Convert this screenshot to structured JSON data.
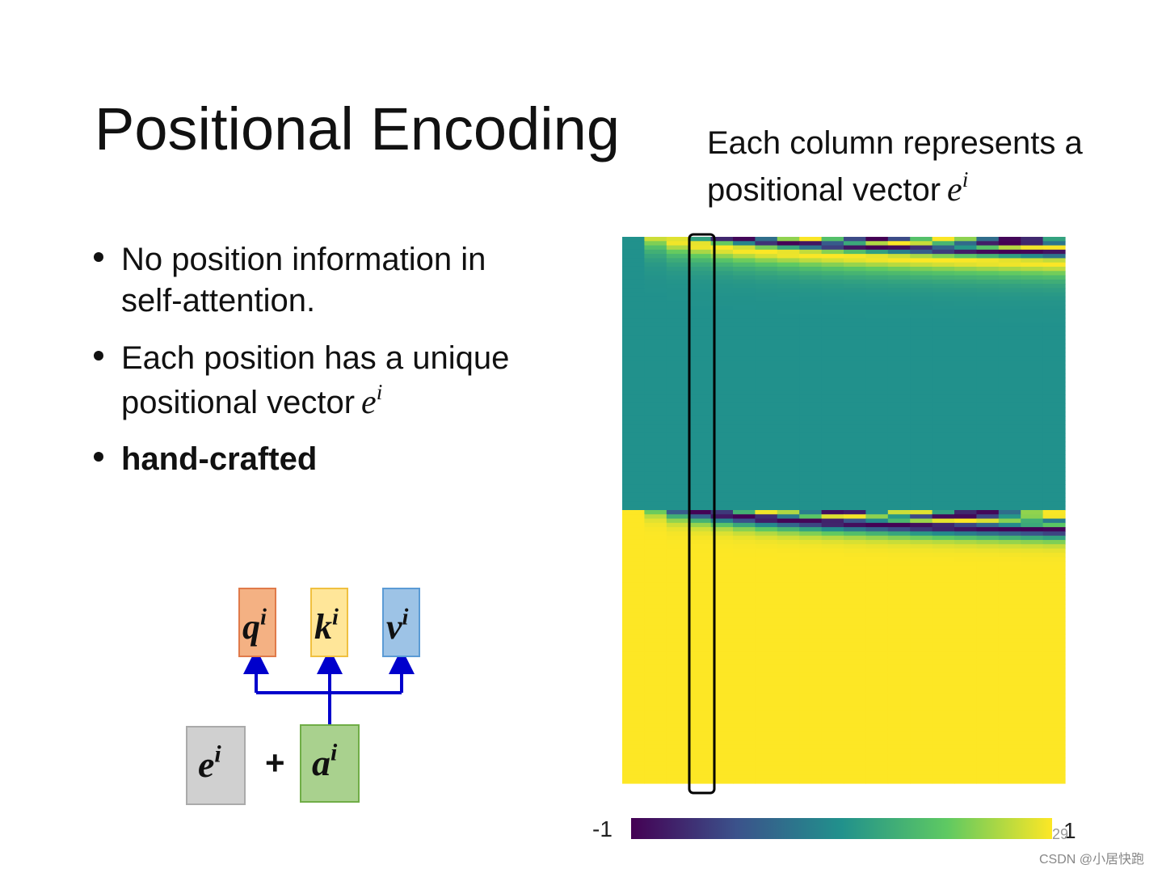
{
  "title": "Positional Encoding",
  "caption": {
    "lines": [
      "Each column represents a",
      "positional vector"
    ],
    "math": {
      "base": "e",
      "sup": "i"
    }
  },
  "bullets": [
    {
      "lines": [
        "No position information in",
        "self-attention."
      ]
    },
    {
      "lines": [
        "Each position has a unique",
        "positional vector"
      ],
      "math": {
        "base": "e",
        "sup": "i"
      }
    },
    {
      "lines": [
        "hand-crafted"
      ],
      "bold": true
    }
  ],
  "diagram": {
    "outputs": [
      {
        "base": "q",
        "sup": "i"
      },
      {
        "base": "k",
        "sup": "i"
      },
      {
        "base": "v",
        "sup": "i"
      }
    ],
    "inputs": [
      {
        "base": "e",
        "sup": "i"
      },
      {
        "base": "a",
        "sup": "i"
      }
    ],
    "operator": "+"
  },
  "colorbar": {
    "min_label": "-1",
    "max_label": "1"
  },
  "page_number": "29",
  "watermark": "CSDN @小居快跑"
}
